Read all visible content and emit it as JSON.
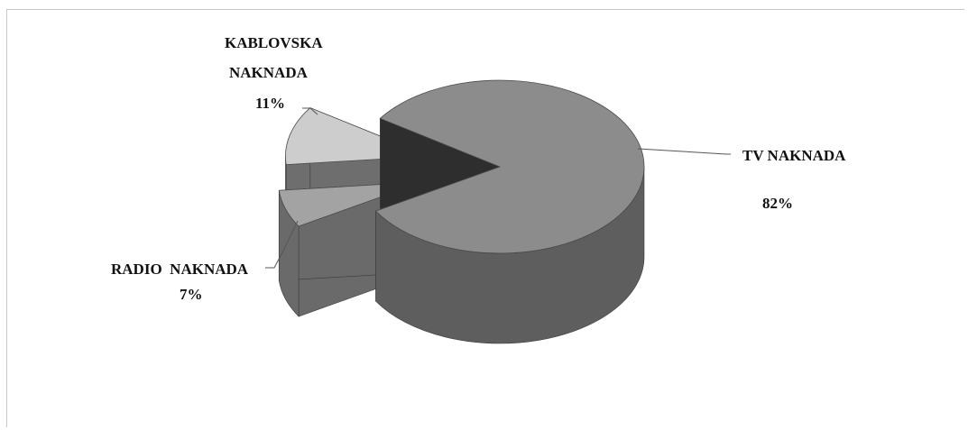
{
  "chart_data": {
    "type": "pie",
    "style": "3d-exploded",
    "slices": [
      {
        "name": "TV NAKNADA",
        "value": 82,
        "label": "82%",
        "color": "#8c8c8c",
        "side_color": "#5e5e5e"
      },
      {
        "name": "RADIO  NAKNADA",
        "value": 7,
        "label": "7%",
        "color": "#a3a3a3",
        "side_color": "#6a6a6a"
      },
      {
        "name": "KABLOVSKA NAKNADA",
        "value": 11,
        "label": "11%",
        "color": "#cdcdcd",
        "side_color": "#6e6e6e"
      }
    ],
    "kablovska_name_lines": [
      "KABLOVSKA",
      "NAKNADA"
    ],
    "legend": "none",
    "grid": false
  }
}
